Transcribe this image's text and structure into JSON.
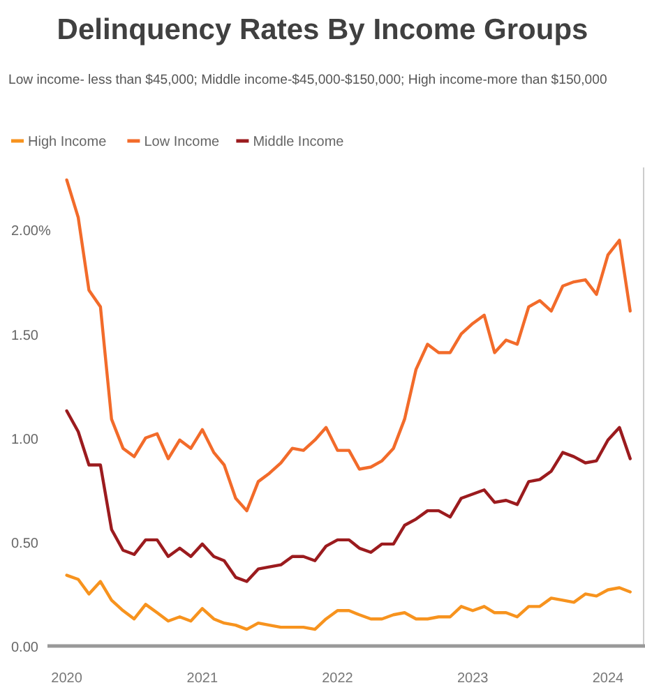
{
  "chart_data": {
    "type": "line",
    "title": "Delinquency Rates By Income Groups",
    "subtitle": "Low income- less than $45,000; Middle income-$45,000-$150,000; High income-more than $150,000",
    "x": [
      "2020-01",
      "2020-02",
      "2020-03",
      "2020-04",
      "2020-05",
      "2020-06",
      "2020-07",
      "2020-08",
      "2020-09",
      "2020-10",
      "2020-11",
      "2020-12",
      "2021-01",
      "2021-02",
      "2021-03",
      "2021-04",
      "2021-05",
      "2021-06",
      "2021-07",
      "2021-08",
      "2021-09",
      "2021-10",
      "2021-11",
      "2021-12",
      "2022-01",
      "2022-02",
      "2022-03",
      "2022-04",
      "2022-05",
      "2022-06",
      "2022-07",
      "2022-08",
      "2022-09",
      "2022-10",
      "2022-11",
      "2022-12",
      "2023-01",
      "2023-02",
      "2023-03",
      "2023-04",
      "2023-05",
      "2023-06",
      "2023-07",
      "2023-08",
      "2023-09",
      "2023-10",
      "2023-11",
      "2023-12",
      "2024-01",
      "2024-02",
      "2024-03"
    ],
    "series": [
      {
        "name": "High Income",
        "color": "#f7931e",
        "values": [
          0.34,
          0.32,
          0.25,
          0.31,
          0.22,
          0.17,
          0.13,
          0.2,
          0.16,
          0.12,
          0.14,
          0.12,
          0.18,
          0.13,
          0.11,
          0.1,
          0.08,
          0.11,
          0.1,
          0.09,
          0.09,
          0.09,
          0.08,
          0.13,
          0.17,
          0.17,
          0.15,
          0.13,
          0.13,
          0.15,
          0.16,
          0.13,
          0.13,
          0.14,
          0.14,
          0.19,
          0.17,
          0.19,
          0.16,
          0.16,
          0.14,
          0.19,
          0.19,
          0.23,
          0.22,
          0.21,
          0.25,
          0.24,
          0.27,
          0.28,
          0.26
        ]
      },
      {
        "name": "Low Income",
        "color": "#f26b2a",
        "values": [
          2.24,
          2.06,
          1.71,
          1.63,
          1.09,
          0.95,
          0.91,
          1.0,
          1.02,
          0.9,
          0.99,
          0.95,
          1.04,
          0.93,
          0.87,
          0.71,
          0.65,
          0.79,
          0.83,
          0.88,
          0.95,
          0.94,
          0.99,
          1.05,
          0.94,
          0.94,
          0.85,
          0.86,
          0.89,
          0.95,
          1.09,
          1.33,
          1.45,
          1.41,
          1.41,
          1.5,
          1.55,
          1.59,
          1.41,
          1.47,
          1.45,
          1.63,
          1.66,
          1.61,
          1.73,
          1.75,
          1.76,
          1.69,
          1.88,
          1.95,
          1.61
        ]
      },
      {
        "name": "Middle Income",
        "color": "#9b1b1e",
        "values": [
          1.13,
          1.03,
          0.87,
          0.87,
          0.56,
          0.46,
          0.44,
          0.51,
          0.51,
          0.43,
          0.47,
          0.43,
          0.49,
          0.43,
          0.41,
          0.33,
          0.31,
          0.37,
          0.38,
          0.39,
          0.43,
          0.43,
          0.41,
          0.48,
          0.51,
          0.51,
          0.47,
          0.45,
          0.49,
          0.49,
          0.58,
          0.61,
          0.65,
          0.65,
          0.62,
          0.71,
          0.73,
          0.75,
          0.69,
          0.7,
          0.68,
          0.79,
          0.8,
          0.84,
          0.93,
          0.91,
          0.88,
          0.89,
          0.99,
          1.05,
          0.9
        ]
      }
    ],
    "xlim": [
      "2019-11-10",
      "2024-04-10"
    ],
    "xticks": [
      "2020",
      "2021",
      "2022",
      "2023",
      "2024"
    ],
    "ylim": [
      0,
      2.3
    ],
    "yticks": [
      {
        "value": 0,
        "label": "0.00"
      },
      {
        "value": 0.5,
        "label": "0.50"
      },
      {
        "value": 1,
        "label": "1.00"
      },
      {
        "value": 1.5,
        "label": "1.50"
      },
      {
        "value": 2,
        "label": "2.00%"
      }
    ],
    "grid": false,
    "legend": "top left",
    "marker": "none",
    "line_style": "solid"
  }
}
